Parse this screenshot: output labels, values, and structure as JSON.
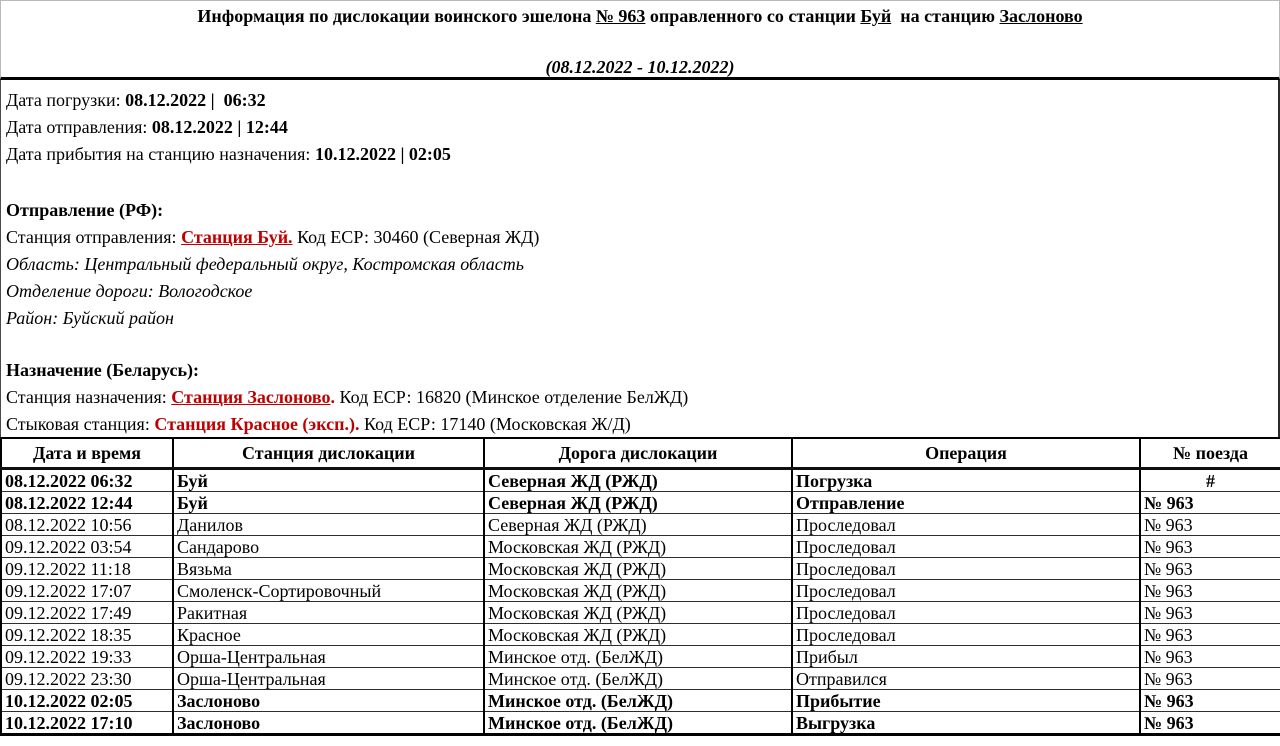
{
  "accent_red": "#c00000",
  "header": {
    "title_prefix": "Информация по дислокации воинского эшелона ",
    "train_no": "№ 963",
    "title_mid1": " оправленного со станции ",
    "origin_station": "Буй",
    "title_mid2": "  на станцию ",
    "destination_station": "Заслоново",
    "date_range": "(08.12.2022 - 10.12.2022)"
  },
  "summary": {
    "lines": [
      {
        "label": "Дата погрузки: ",
        "value": "08.12.2022 |  06:32"
      },
      {
        "label": "Дата отправления: ",
        "value": "08.12.2022 | 12:44"
      },
      {
        "label": "Дата прибытия на станцию назначения: ",
        "value": "10.12.2022 | 02:05"
      }
    ]
  },
  "departure": {
    "heading": "Отправление (РФ):",
    "station_label": "Станция отправления: ",
    "station_link": "Станция Буй.",
    "station_rest": " Код ЕСР: 30460 (Северная ЖД)",
    "region": "Область: Центральный федеральный округ, Костромская область",
    "division": "Отделение дороги: Вологодское",
    "district": "Район: Буйский район"
  },
  "destination": {
    "heading": "Назначение (Беларусь):",
    "station_label": "Станция назначения: ",
    "station_link": "Станция Заслоново",
    "station_dot": ".",
    "station_rest": " Код ЕСР: 16820 (Минское отделение БелЖД)",
    "junction_label": "Стыковая станция: ",
    "junction_station": "Станция Красное (эксп.).",
    "junction_rest": " Код ЕСР: 17140 (Московская Ж/Д)"
  },
  "table": {
    "columns": [
      "Дата и время",
      "Станция дислокации",
      "Дорога дислокации",
      "Операция",
      "№ поезда"
    ],
    "rows": [
      {
        "datetime": "08.12.2022 06:32",
        "station": "Буй",
        "road": "Северная ЖД (РЖД)",
        "operation": "Погрузка",
        "train": "#",
        "bold": true,
        "train_center": true
      },
      {
        "datetime": "08.12.2022 12:44",
        "station": "Буй",
        "road": "Северная ЖД (РЖД)",
        "operation": "Отправление",
        "train": "№ 963",
        "bold": true
      },
      {
        "datetime": "08.12.2022 10:56",
        "station": "Данилов",
        "road": "Северная ЖД (РЖД)",
        "operation": "Проследовал",
        "train": "№ 963"
      },
      {
        "datetime": "09.12.2022 03:54",
        "station": "Сандарово",
        "road": "Московская ЖД (РЖД)",
        "operation": "Проследовал",
        "train": "№ 963"
      },
      {
        "datetime": "09.12.2022 11:18",
        "station": "Вязьма",
        "road": "Московская ЖД (РЖД)",
        "operation": "Проследовал",
        "train": "№ 963"
      },
      {
        "datetime": "09.12.2022 17:07",
        "station": "Смоленск-Сортировочный",
        "road": "Московская ЖД (РЖД)",
        "operation": "Проследовал",
        "train": "№ 963"
      },
      {
        "datetime": "09.12.2022 17:49",
        "station": "Ракитная",
        "road": "Московская ЖД (РЖД)",
        "operation": "Проследовал",
        "train": "№ 963"
      },
      {
        "datetime": "09.12.2022 18:35",
        "station": "Красное",
        "road": "Московская ЖД (РЖД)",
        "operation": "Проследовал",
        "train": "№ 963"
      },
      {
        "datetime": "09.12.2022 19:33",
        "station": "Орша-Центральная",
        "road": "Минское отд. (БелЖД)",
        "operation": "Прибыл",
        "train": "№ 963"
      },
      {
        "datetime": "09.12.2022 23:30",
        "station": "Орша-Центральная",
        "road": "Минское отд. (БелЖД)",
        "operation": "Отправился",
        "train": "№ 963"
      },
      {
        "datetime": "10.12.2022 02:05",
        "station": "Заслоново",
        "road": "Минское отд. (БелЖД)",
        "operation": "Прибытие",
        "train": "№ 963",
        "bold": true
      },
      {
        "datetime": "10.12.2022 17:10",
        "station": "Заслоново",
        "road": "Минское отд. (БелЖД)",
        "operation": "Выгрузка",
        "train": "№ 963",
        "bold": true
      }
    ]
  }
}
